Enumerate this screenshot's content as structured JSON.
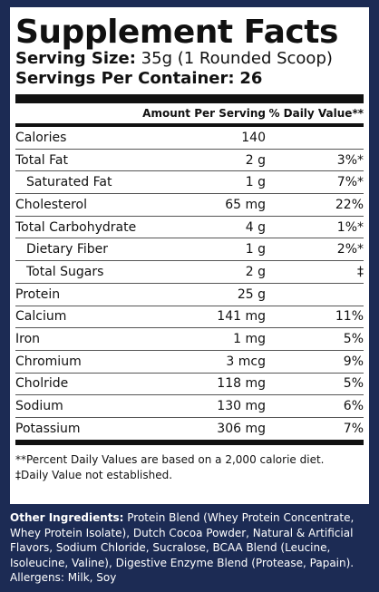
{
  "title": "Supplement Facts",
  "serving_size_label": "Serving Size:",
  "serving_size_value": "35g (1 Rounded Scoop)",
  "servings_label": "Servings Per Container:",
  "servings_value": "26",
  "header": {
    "amount": "Amount Per Serving",
    "dv": "% Daily Value**"
  },
  "rows": [
    {
      "name": "Calories",
      "amount": "140",
      "dv": ""
    },
    {
      "name": "Total Fat",
      "amount": "2 g",
      "dv": "3%*"
    },
    {
      "name": "Saturated Fat",
      "amount": "1 g",
      "dv": "7%*"
    },
    {
      "name": "Cholesterol",
      "amount": "65 mg",
      "dv": "22%"
    },
    {
      "name": "Total Carbohydrate",
      "amount": "4 g",
      "dv": "1%*"
    },
    {
      "name": "Dietary Fiber",
      "amount": "1 g",
      "dv": "2%*"
    },
    {
      "name": "Total Sugars",
      "amount": "2 g",
      "dv": "‡"
    },
    {
      "name": "Protein",
      "amount": "25 g",
      "dv": ""
    },
    {
      "name": "Calcium",
      "amount": "141 mg",
      "dv": "11%"
    },
    {
      "name": "Iron",
      "amount": "1 mg",
      "dv": "5%"
    },
    {
      "name": "Chromium",
      "amount": "3 mcg",
      "dv": "9%"
    },
    {
      "name": "Cholride",
      "amount": "118 mg",
      "dv": "5%"
    },
    {
      "name": "Sodium",
      "amount": "130 mg",
      "dv": "6%"
    },
    {
      "name": "Potassium",
      "amount": "306 mg",
      "dv": "7%"
    }
  ],
  "footnotes": [
    "**Percent Daily Values are based on a 2,000 calorie diet.",
    "‡Daily Value not established."
  ],
  "other_ingredients_label": "Other Ingredients:",
  "other_ingredients_text": "Protein Blend (Whey Protein Concentrate, Whey Protein Isolate), Dutch Cocoa Powder, Natural & Artificial Flavors, Sodium Chloride, Sucralose, BCAA Blend (Leucine, Isoleucine, Valine), Digestive Enzyme Blend (Protease, Papain).",
  "allergens": "Allergens: Milk, Soy",
  "colors": {
    "background": "#1c2b54",
    "panel": "#ffffff",
    "text": "#111111"
  }
}
